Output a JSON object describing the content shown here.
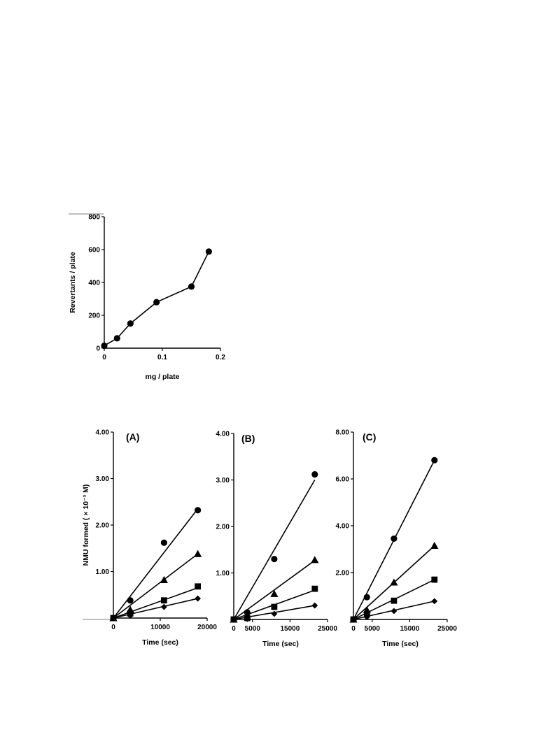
{
  "colors": {
    "ink": "#000000",
    "background": "#ffffff"
  },
  "chart_data": [
    {
      "type": "line",
      "title": "",
      "xlabel": "mg / plate",
      "ylabel": "Revertants / plate",
      "xlim": [
        0,
        0.2
      ],
      "ylim": [
        0,
        800
      ],
      "xticks": [
        0,
        0.1,
        0.2
      ],
      "xtick_labels": [
        "0",
        "0.1",
        "0.2"
      ],
      "yticks": [
        0,
        200,
        400,
        600,
        800
      ],
      "ytick_labels": [
        "0",
        "200",
        "400",
        "600",
        "800"
      ],
      "grid": false,
      "legend": "none",
      "series": [
        {
          "marker": "circle",
          "x": [
            0,
            0.022,
            0.045,
            0.09,
            0.15,
            0.18
          ],
          "y": [
            15,
            60,
            150,
            280,
            375,
            588
          ],
          "line": "connect"
        }
      ]
    },
    {
      "type": "scatter",
      "title": "(A)",
      "xlabel": "Time (sec)",
      "ylabel": "NMU formed ( × 10⁻³ M)",
      "xlim": [
        0,
        20000
      ],
      "ylim": [
        0,
        4
      ],
      "xticks": [
        0,
        10000,
        20000
      ],
      "xtick_labels": [
        "0",
        "10000",
        "20000"
      ],
      "yticks": [
        1,
        2,
        3,
        4
      ],
      "ytick_labels": [
        "1.00",
        "2.00",
        "3.00",
        "4.00"
      ],
      "grid": false,
      "legend": "none",
      "series": [
        {
          "marker": "circle",
          "x": [
            0,
            3600,
            10800,
            18000
          ],
          "y": [
            0,
            0.38,
            1.62,
            2.32
          ],
          "fit": [
            [
              0,
              0
            ],
            [
              18000,
              2.35
            ]
          ]
        },
        {
          "marker": "triangle",
          "x": [
            0,
            3600,
            10800,
            18000
          ],
          "y": [
            0,
            0.18,
            0.82,
            1.38
          ],
          "fit": [
            [
              0,
              0
            ],
            [
              18000,
              1.38
            ]
          ]
        },
        {
          "marker": "square",
          "x": [
            0,
            3600,
            10800,
            18000
          ],
          "y": [
            0,
            0.1,
            0.38,
            0.68
          ],
          "fit": [
            [
              0,
              0
            ],
            [
              18000,
              0.65
            ]
          ]
        },
        {
          "marker": "diamond",
          "x": [
            0,
            3600,
            10800,
            18000
          ],
          "y": [
            0,
            0.05,
            0.24,
            0.42
          ],
          "fit": [
            [
              0,
              0
            ],
            [
              18000,
              0.42
            ]
          ]
        }
      ]
    },
    {
      "type": "scatter",
      "title": "(B)",
      "xlabel": "Time (sec)",
      "ylabel": "",
      "xlim": [
        0,
        25000
      ],
      "ylim": [
        0,
        4
      ],
      "xticks": [
        0,
        5000,
        15000,
        25000
      ],
      "xtick_labels": [
        "0",
        "5000",
        "15000",
        "25000"
      ],
      "yticks": [
        1,
        2,
        3,
        4
      ],
      "ytick_labels": [
        "1.00",
        "2.00",
        "3.00",
        "4.00"
      ],
      "grid": false,
      "legend": "none",
      "series": [
        {
          "marker": "circle",
          "x": [
            0,
            3600,
            10800,
            21600
          ],
          "y": [
            0,
            0.15,
            1.3,
            3.12
          ],
          "fit": [
            [
              0,
              0
            ],
            [
              21600,
              3.0
            ]
          ]
        },
        {
          "marker": "triangle",
          "x": [
            0,
            3600,
            10800,
            21600
          ],
          "y": [
            0,
            0.06,
            0.55,
            1.28
          ],
          "fit": [
            [
              0,
              0
            ],
            [
              21600,
              1.27
            ]
          ]
        },
        {
          "marker": "square",
          "x": [
            0,
            3600,
            10800,
            21600
          ],
          "y": [
            0,
            0.03,
            0.27,
            0.66
          ],
          "fit": [
            [
              0,
              0
            ],
            [
              21600,
              0.63
            ]
          ]
        },
        {
          "marker": "diamond",
          "x": [
            0,
            3600,
            10800,
            21600
          ],
          "y": [
            0,
            0.01,
            0.12,
            0.3
          ],
          "fit": [
            [
              0,
              0
            ],
            [
              21600,
              0.3
            ]
          ]
        }
      ]
    },
    {
      "type": "scatter",
      "title": "(C)",
      "xlabel": "Time (sec)",
      "ylabel": "",
      "xlim": [
        0,
        25000
      ],
      "ylim": [
        0,
        8
      ],
      "xticks": [
        0,
        5000,
        15000,
        25000
      ],
      "xtick_labels": [
        "0",
        "5000",
        "15000",
        "25000"
      ],
      "yticks": [
        2,
        4,
        6,
        8
      ],
      "ytick_labels": [
        "2.00",
        "4.00",
        "6.00",
        "8.00"
      ],
      "grid": false,
      "legend": "none",
      "series": [
        {
          "marker": "circle",
          "x": [
            0,
            3600,
            10800,
            21600
          ],
          "y": [
            0,
            0.95,
            3.45,
            6.8
          ],
          "fit": [
            [
              0,
              0
            ],
            [
              21600,
              6.8
            ]
          ]
        },
        {
          "marker": "triangle",
          "x": [
            0,
            3600,
            10800,
            21600
          ],
          "y": [
            0,
            0.4,
            1.58,
            3.15
          ],
          "fit": [
            [
              0,
              0
            ],
            [
              21600,
              3.15
            ]
          ]
        },
        {
          "marker": "square",
          "x": [
            0,
            3600,
            10800,
            21600
          ],
          "y": [
            0,
            0.22,
            0.8,
            1.7
          ],
          "fit": [
            [
              0,
              0
            ],
            [
              21600,
              1.7
            ]
          ]
        },
        {
          "marker": "diamond",
          "x": [
            0,
            3600,
            10800,
            21600
          ],
          "y": [
            0,
            0.1,
            0.36,
            0.78
          ],
          "fit": [
            [
              0,
              0
            ],
            [
              21600,
              0.78
            ]
          ]
        }
      ]
    }
  ]
}
